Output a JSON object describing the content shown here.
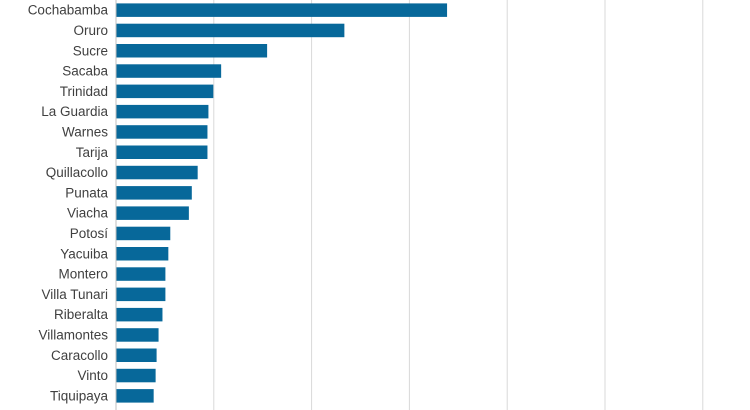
{
  "chart_data": {
    "type": "bar",
    "orientation": "horizontal",
    "categories": [
      "Cochabamba",
      "Oruro",
      "Sucre",
      "Sacaba",
      "Trinidad",
      "La Guardia",
      "Warnes",
      "Tarija",
      "Quillacollo",
      "Punata",
      "Viacha",
      "Potosí",
      "Yacuiba",
      "Montero",
      "Villa Tunari",
      "Riberalta",
      "Villamontes",
      "Caracollo",
      "Vinto",
      "Tiquipaya"
    ],
    "values": [
      3.38,
      2.33,
      1.54,
      1.07,
      0.99,
      0.94,
      0.93,
      0.93,
      0.83,
      0.77,
      0.74,
      0.55,
      0.53,
      0.5,
      0.5,
      0.47,
      0.43,
      0.41,
      0.4,
      0.38
    ],
    "xlim": [
      0,
      6.5
    ],
    "x_gridlines": [
      0,
      1,
      2,
      3,
      4,
      5,
      6
    ],
    "grid": "vertical",
    "legend": "none",
    "title": "",
    "xlabel": "",
    "ylabel": ""
  },
  "colors": {
    "bar": "#07689a",
    "grid": "#d9d9d9",
    "label": "#404040"
  }
}
